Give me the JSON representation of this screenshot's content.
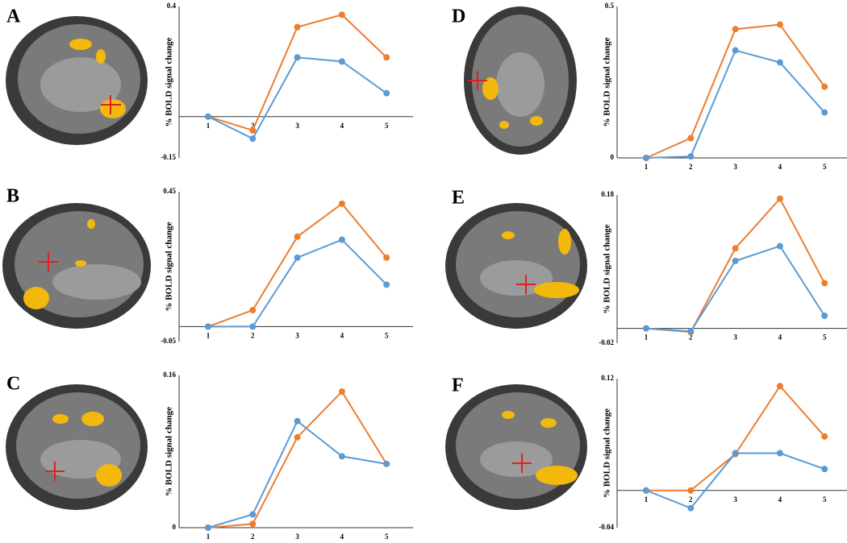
{
  "chart_data": [
    {
      "type": "line",
      "label": "A",
      "ylabel": "% BOLD signal change",
      "categories": [
        "1",
        "2",
        "3",
        "4",
        "5"
      ],
      "series": [
        {
          "color": "#ed7d31",
          "values": [
            0,
            -0.05,
            0.325,
            0.37,
            0.215
          ]
        },
        {
          "color": "#5b9bd5",
          "values": [
            0,
            -0.08,
            0.215,
            0.2,
            0.085
          ]
        }
      ],
      "ylim": [
        -0.15,
        0.4
      ],
      "yticks": [
        -0.15,
        0.4
      ]
    },
    {
      "type": "line",
      "label": "B",
      "ylabel": "% BOLD signal change",
      "categories": [
        "1",
        "2",
        "3",
        "4",
        "5"
      ],
      "series": [
        {
          "color": "#ed7d31",
          "values": [
            0,
            0.055,
            0.3,
            0.41,
            0.23
          ]
        },
        {
          "color": "#5b9bd5",
          "values": [
            0,
            0,
            0.23,
            0.29,
            0.14
          ]
        }
      ],
      "ylim": [
        -0.05,
        0.45
      ],
      "yticks": [
        -0.05,
        0.45
      ]
    },
    {
      "type": "line",
      "label": "C",
      "ylabel": "% BOLD signal change",
      "categories": [
        "1",
        "2",
        "3",
        "4",
        "5"
      ],
      "series": [
        {
          "color": "#ed7d31",
          "values": [
            0,
            0.004,
            0.095,
            0.143,
            0.067
          ]
        },
        {
          "color": "#5b9bd5",
          "values": [
            0,
            0.014,
            0.112,
            0.075,
            0.067
          ]
        }
      ],
      "ylim": [
        0,
        0.16
      ],
      "yticks": [
        0,
        0.16
      ]
    },
    {
      "type": "line",
      "label": "D",
      "ylabel": "% BOLD signal change",
      "categories": [
        "1",
        "2",
        "3",
        "4",
        "5"
      ],
      "series": [
        {
          "color": "#ed7d31",
          "values": [
            0,
            0.065,
            0.425,
            0.44,
            0.235
          ]
        },
        {
          "color": "#5b9bd5",
          "values": [
            0,
            0.005,
            0.355,
            0.315,
            0.15
          ]
        }
      ],
      "ylim": [
        0,
        0.5
      ],
      "yticks": [
        0,
        0.5
      ]
    },
    {
      "type": "line",
      "label": "E",
      "ylabel": "% BOLD signal change",
      "categories": [
        "1",
        "2",
        "3",
        "4",
        "5"
      ],
      "series": [
        {
          "color": "#ed7d31",
          "values": [
            0,
            -0.005,
            0.108,
            0.175,
            0.061
          ]
        },
        {
          "color": "#5b9bd5",
          "values": [
            0,
            -0.004,
            0.091,
            0.111,
            0.017
          ]
        }
      ],
      "ylim": [
        -0.02,
        0.18
      ],
      "yticks": [
        -0.02,
        0.18
      ]
    },
    {
      "type": "line",
      "label": "F",
      "ylabel": "% BOLD signal change",
      "categories": [
        "1",
        "2",
        "3",
        "4",
        "5"
      ],
      "series": [
        {
          "color": "#ed7d31",
          "values": [
            0,
            0,
            0.039,
            0.112,
            0.058
          ]
        },
        {
          "color": "#5b9bd5",
          "values": [
            0,
            -0.019,
            0.04,
            0.04,
            0.023
          ]
        }
      ],
      "ylim": [
        -0.04,
        0.12
      ],
      "yticks": [
        -0.04,
        0.12
      ]
    }
  ]
}
